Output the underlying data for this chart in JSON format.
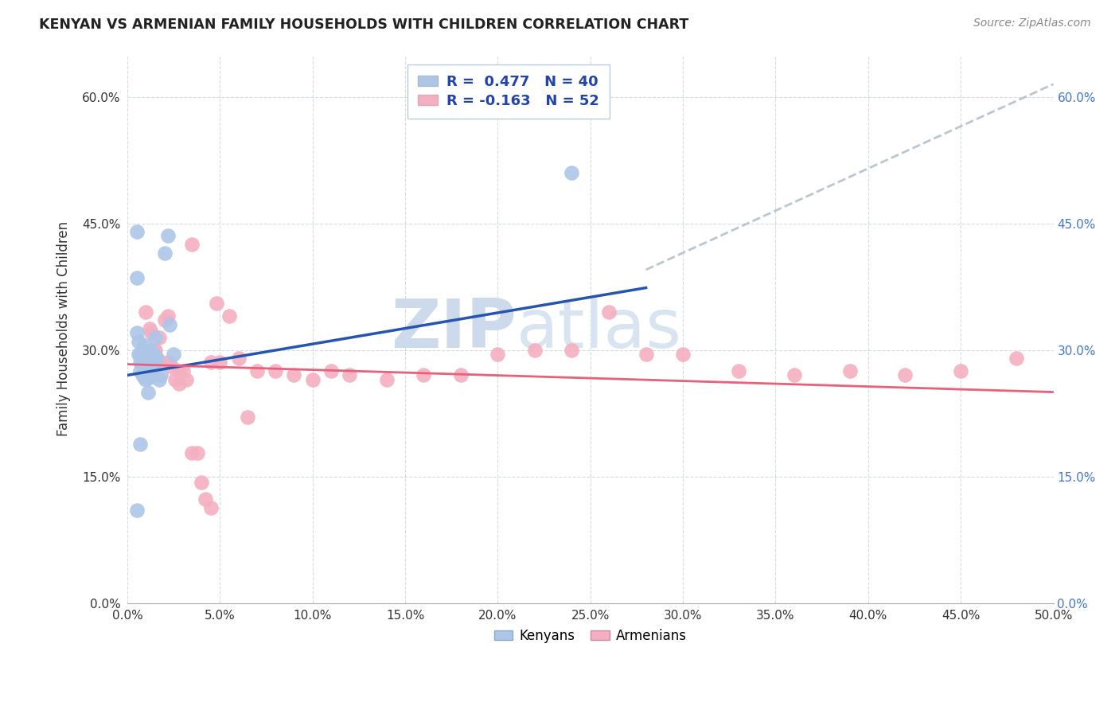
{
  "title": "KENYAN VS ARMENIAN FAMILY HOUSEHOLDS WITH CHILDREN CORRELATION CHART",
  "source": "Source: ZipAtlas.com",
  "ylabel": "Family Households with Children",
  "xlim": [
    0.0,
    0.5
  ],
  "ylim": [
    0.0,
    0.65
  ],
  "x_ticks": [
    0.0,
    0.05,
    0.1,
    0.15,
    0.2,
    0.25,
    0.3,
    0.35,
    0.4,
    0.45,
    0.5
  ],
  "y_ticks": [
    0.0,
    0.15,
    0.3,
    0.45,
    0.6
  ],
  "kenyan_R": 0.477,
  "kenyan_N": 40,
  "armenian_R": -0.163,
  "armenian_N": 52,
  "kenyan_color": "#adc6e8",
  "armenian_color": "#f4afc0",
  "kenyan_line_color": "#2555b0",
  "armenian_line_color": "#e8607a",
  "dashed_line_color": "#b0bcc8",
  "watermark_zip": "ZIP",
  "watermark_atlas": "atlas",
  "watermark_color": "#ccdaec",
  "kenyan_line_x0": 0.0,
  "kenyan_line_y0": 0.27,
  "kenyan_line_x1": 0.5,
  "kenyan_line_y1": 0.455,
  "armenian_line_x0": 0.0,
  "armenian_line_y0": 0.283,
  "armenian_line_x1": 0.5,
  "armenian_line_y1": 0.25,
  "dashed_line_x0": 0.28,
  "dashed_line_y0": 0.395,
  "dashed_line_x1": 0.5,
  "dashed_line_y1": 0.615,
  "kenyan_x": [
    0.005,
    0.005,
    0.005,
    0.006,
    0.006,
    0.007,
    0.007,
    0.007,
    0.008,
    0.008,
    0.008,
    0.009,
    0.009,
    0.009,
    0.01,
    0.01,
    0.01,
    0.011,
    0.011,
    0.012,
    0.012,
    0.013,
    0.014,
    0.014,
    0.015,
    0.016,
    0.017,
    0.018,
    0.02,
    0.022,
    0.023,
    0.025,
    0.005,
    0.007,
    0.009,
    0.01,
    0.011,
    0.012,
    0.014,
    0.24
  ],
  "kenyan_y": [
    0.44,
    0.385,
    0.32,
    0.31,
    0.295,
    0.285,
    0.275,
    0.295,
    0.27,
    0.295,
    0.29,
    0.305,
    0.29,
    0.282,
    0.278,
    0.27,
    0.275,
    0.288,
    0.275,
    0.268,
    0.3,
    0.295,
    0.275,
    0.295,
    0.315,
    0.29,
    0.265,
    0.27,
    0.415,
    0.435,
    0.33,
    0.295,
    0.11,
    0.188,
    0.268,
    0.265,
    0.25,
    0.285,
    0.28,
    0.51
  ],
  "armenian_x": [
    0.007,
    0.009,
    0.01,
    0.012,
    0.013,
    0.014,
    0.015,
    0.016,
    0.017,
    0.018,
    0.02,
    0.022,
    0.024,
    0.026,
    0.028,
    0.03,
    0.032,
    0.035,
    0.038,
    0.04,
    0.042,
    0.045,
    0.048,
    0.05,
    0.055,
    0.06,
    0.07,
    0.08,
    0.09,
    0.1,
    0.11,
    0.12,
    0.14,
    0.16,
    0.18,
    0.2,
    0.22,
    0.24,
    0.26,
    0.28,
    0.3,
    0.33,
    0.36,
    0.39,
    0.42,
    0.45,
    0.48,
    0.022,
    0.028,
    0.035,
    0.045,
    0.065
  ],
  "armenian_y": [
    0.295,
    0.285,
    0.345,
    0.325,
    0.32,
    0.3,
    0.3,
    0.29,
    0.315,
    0.285,
    0.335,
    0.285,
    0.28,
    0.265,
    0.275,
    0.275,
    0.265,
    0.178,
    0.178,
    0.143,
    0.123,
    0.113,
    0.355,
    0.285,
    0.34,
    0.29,
    0.275,
    0.275,
    0.27,
    0.265,
    0.275,
    0.27,
    0.265,
    0.27,
    0.27,
    0.295,
    0.3,
    0.3,
    0.345,
    0.295,
    0.295,
    0.275,
    0.27,
    0.275,
    0.27,
    0.275,
    0.29,
    0.34,
    0.26,
    0.425,
    0.285,
    0.22
  ]
}
